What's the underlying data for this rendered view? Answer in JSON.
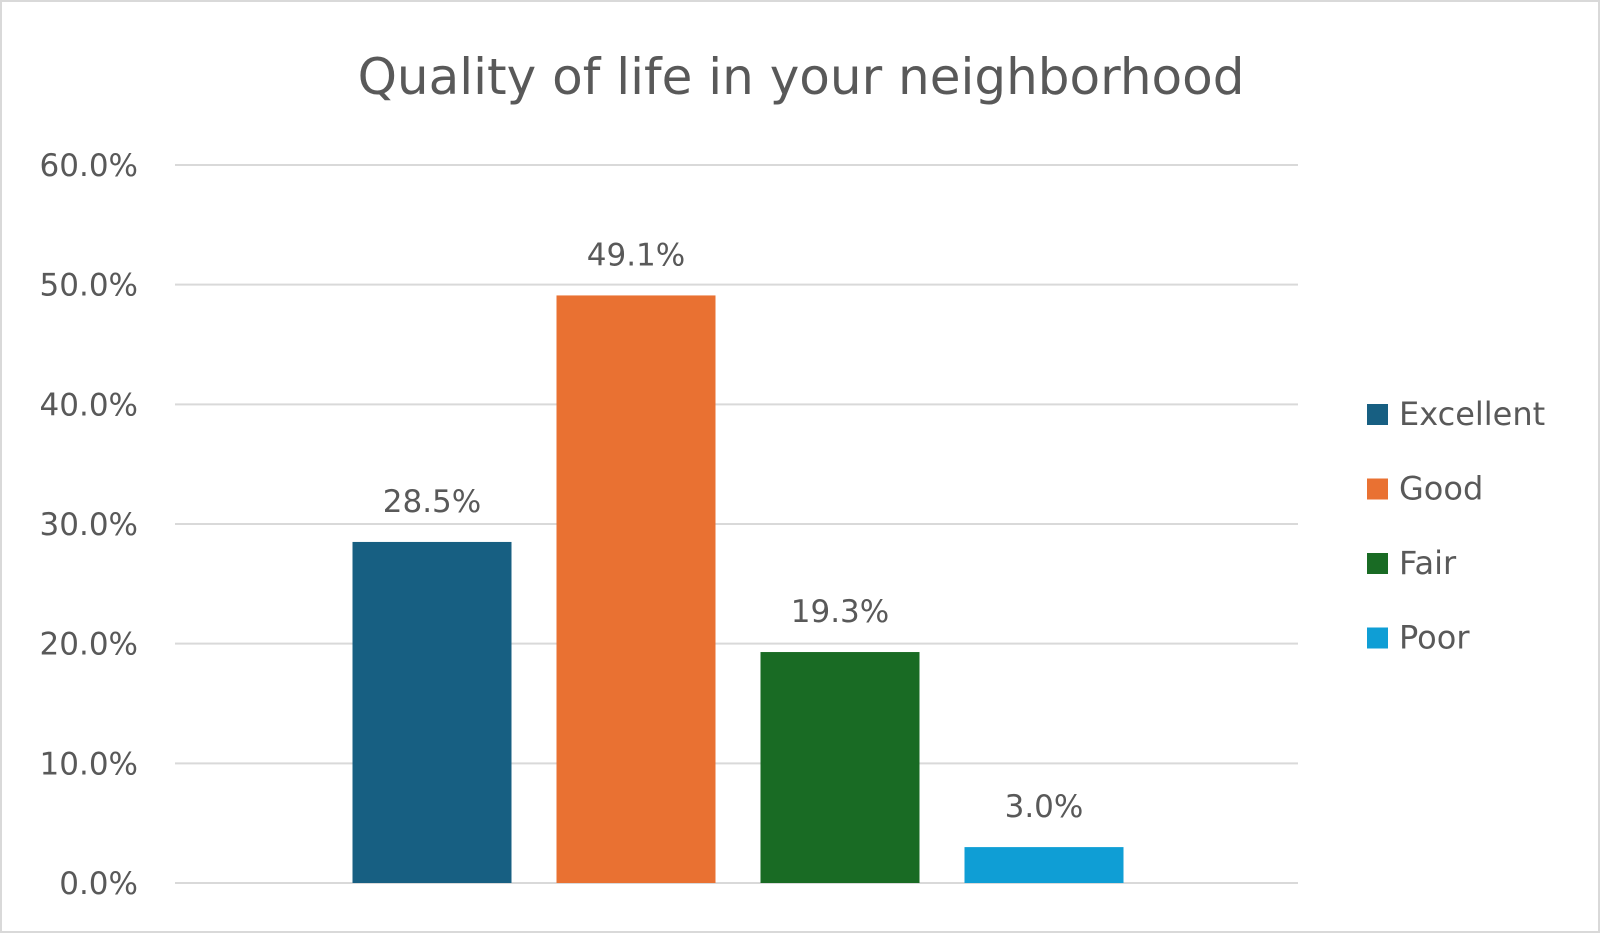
{
  "chart_data": {
    "type": "bar",
    "title": "Quality of life in your neighborhood",
    "xlabel": "",
    "ylabel": "",
    "categories": [
      "Excellent",
      "Good",
      "Fair",
      "Poor"
    ],
    "values": [
      28.5,
      49.1,
      19.3,
      3.0
    ],
    "data_labels": [
      "28.5%",
      "49.1%",
      "19.3%",
      "3.0%"
    ],
    "colors": [
      "#175f82",
      "#e97132",
      "#196b24",
      "#0f9ed5"
    ],
    "ylim": [
      0,
      60
    ],
    "yticks": [
      0,
      10,
      20,
      30,
      40,
      50,
      60
    ],
    "ytick_labels": [
      "0.0%",
      "10.0%",
      "20.0%",
      "30.0%",
      "40.0%",
      "50.0%",
      "60.0%"
    ],
    "grid": true,
    "legend": {
      "placement": "right",
      "entries": [
        "Excellent",
        "Good",
        "Fair",
        "Poor"
      ]
    }
  }
}
